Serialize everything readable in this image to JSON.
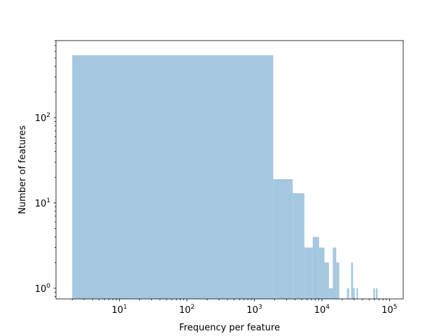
{
  "chart_data": {
    "type": "bar",
    "title": "",
    "xlabel": "Frequency per feature",
    "ylabel": "Number of features",
    "xscale": "log",
    "yscale": "log",
    "xlim": [
      1.15,
      160000
    ],
    "ylim": [
      0.75,
      800
    ],
    "grid": false,
    "bar_color": "#a5c8e0",
    "x_ticks": [
      {
        "base": "10",
        "exp": "1",
        "value": 10
      },
      {
        "base": "10",
        "exp": "2",
        "value": 100
      },
      {
        "base": "10",
        "exp": "3",
        "value": 1000
      },
      {
        "base": "10",
        "exp": "4",
        "value": 10000
      },
      {
        "base": "10",
        "exp": "5",
        "value": 100000
      }
    ],
    "y_ticks": [
      {
        "base": "10",
        "exp": "0",
        "value": 1
      },
      {
        "base": "10",
        "exp": "1",
        "value": 10
      },
      {
        "base": "10",
        "exp": "2",
        "value": 100
      }
    ],
    "bins": [
      {
        "x0": 2,
        "x1": 1900,
        "count": 540
      },
      {
        "x0": 1900,
        "x1": 3700,
        "count": 19
      },
      {
        "x0": 3700,
        "x1": 5500,
        "count": 13
      },
      {
        "x0": 5500,
        "x1": 7300,
        "count": 3
      },
      {
        "x0": 7300,
        "x1": 9100,
        "count": 4
      },
      {
        "x0": 9100,
        "x1": 10900,
        "count": 3
      },
      {
        "x0": 10900,
        "x1": 12700,
        "count": 2
      },
      {
        "x0": 12700,
        "x1": 14500,
        "count": 1
      },
      {
        "x0": 14500,
        "x1": 16300,
        "count": 3
      },
      {
        "x0": 16300,
        "x1": 18100,
        "count": 2
      },
      {
        "x0": 23500,
        "x1": 25300,
        "count": 1
      },
      {
        "x0": 27100,
        "x1": 28900,
        "count": 2
      },
      {
        "x0": 28900,
        "x1": 30700,
        "count": 1
      },
      {
        "x0": 32500,
        "x1": 34300,
        "count": 1
      },
      {
        "x0": 57700,
        "x1": 61300,
        "count": 1
      },
      {
        "x0": 63100,
        "x1": 66700,
        "count": 1
      }
    ]
  }
}
